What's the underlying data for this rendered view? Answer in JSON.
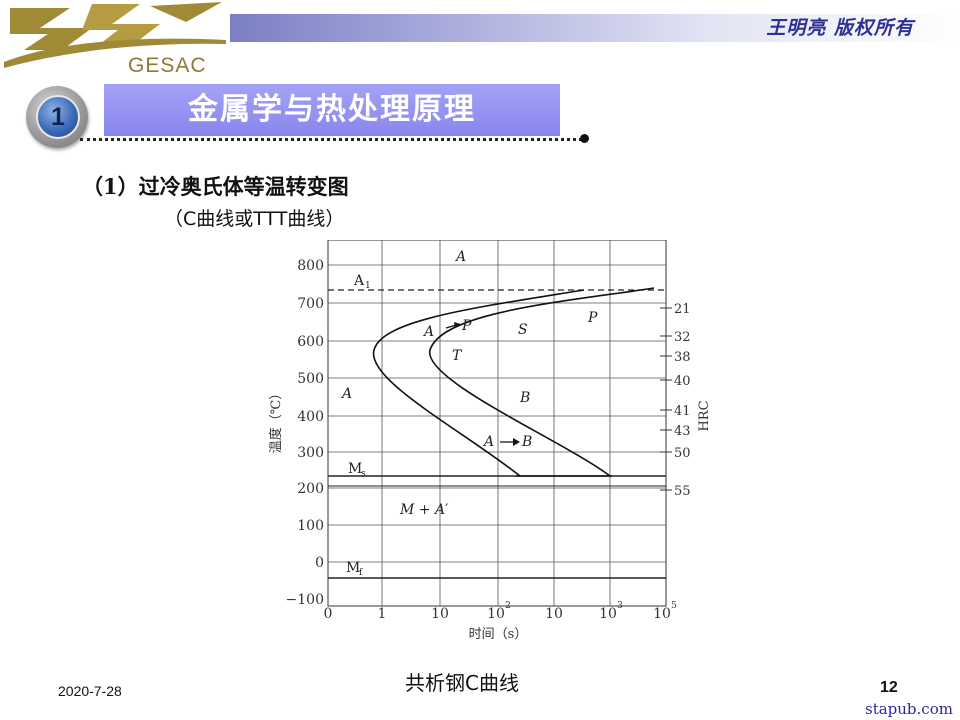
{
  "header": {
    "logo_text": "GESAC",
    "copyright": "王明亮 版权所有"
  },
  "section": {
    "number": "1",
    "title": "金属学与热处理原理"
  },
  "content": {
    "subtitle1": "（1）过冷奥氏体等温转变图",
    "subtitle2": "（C曲线或TTT曲线）"
  },
  "diagram": {
    "y_ticks": [
      "800",
      "700",
      "600",
      "500",
      "400",
      "300",
      "200",
      "100",
      "0",
      "−100"
    ],
    "x_ticks": [
      "0",
      "1",
      "10",
      "10",
      "2",
      "10",
      "10",
      "3",
      "10",
      "5"
    ],
    "ylabel": "温度（℃）",
    "xlabel": "时间（s）",
    "hrc_label": "HRC",
    "hrc_ticks": [
      "21",
      "32",
      "38",
      "40",
      "41",
      "43",
      "50",
      "55"
    ],
    "labels": {
      "a1": "A",
      "a1_sub": "1",
      "ms": "M",
      "ms_sub": "s",
      "mf": "M",
      "mf_sub": "f",
      "region_a_top": "A",
      "region_a_left": "A",
      "a_to_p": "A",
      "p_small": "P",
      "p_right": "P",
      "s": "S",
      "t": "T",
      "b": "B",
      "a_to_b": "A",
      "b_small": "B",
      "m_plus_a": "M + A′"
    }
  },
  "footer": {
    "caption": "共析钢C曲线",
    "date": "2020-7-28",
    "page": "12",
    "watermark": "stapub.com"
  }
}
